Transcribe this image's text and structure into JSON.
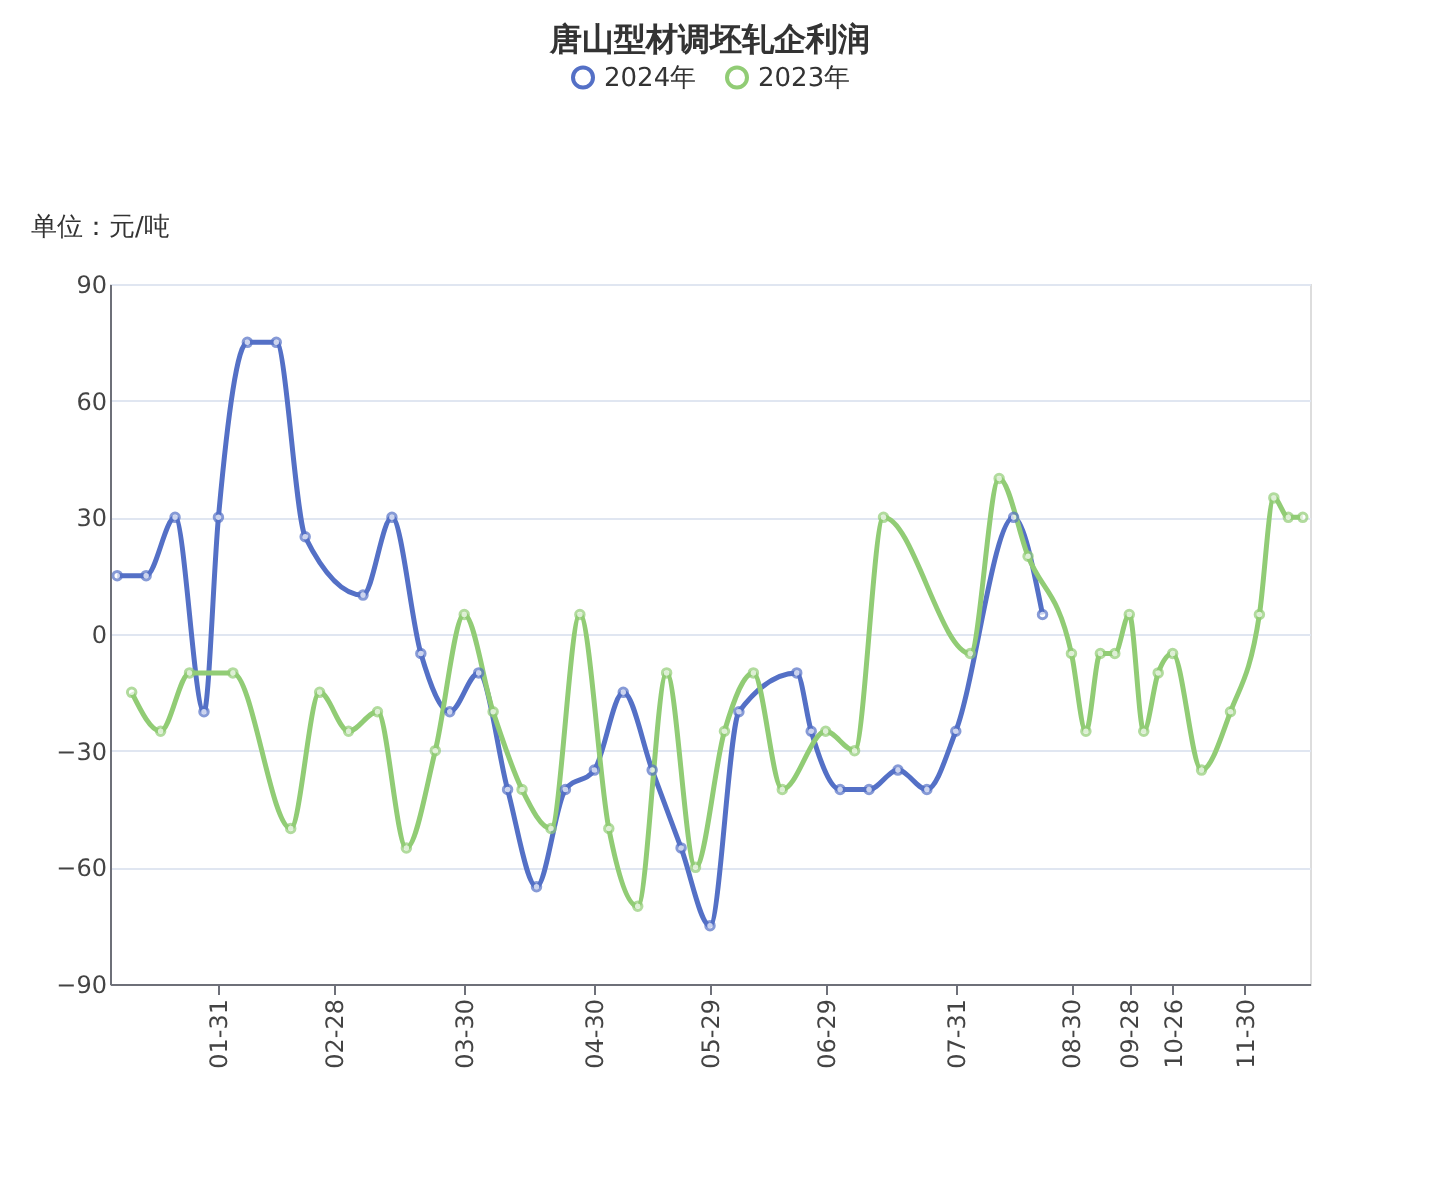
{
  "chart_data": {
    "type": "line",
    "title": "唐山型材调坯轧企利润",
    "ylabel": "单位：元/吨",
    "categories": [
      null,
      null,
      null,
      null,
      null,
      null,
      null,
      "01-31",
      null,
      null,
      null,
      null,
      null,
      null,
      null,
      "02-28",
      null,
      null,
      null,
      null,
      null,
      null,
      null,
      null,
      "03-30",
      null,
      null,
      null,
      null,
      null,
      null,
      null,
      null,
      "04-30",
      null,
      null,
      null,
      null,
      null,
      null,
      null,
      "05-29",
      null,
      null,
      null,
      null,
      null,
      null,
      null,
      "06-29",
      null,
      null,
      null,
      null,
      null,
      null,
      null,
      null,
      "07-31",
      null,
      null,
      null,
      null,
      null,
      null,
      null,
      "08-30",
      null,
      null,
      null,
      "09-28",
      null,
      null,
      "10-26",
      null,
      null,
      null,
      null,
      "11-30",
      null,
      null,
      null,
      null
    ],
    "series": [
      {
        "name": "2024年",
        "color": "#5470c6",
        "values": [
          15,
          null,
          15,
          null,
          30,
          null,
          -20,
          30,
          null,
          75,
          null,
          75,
          null,
          25,
          null,
          null,
          null,
          10,
          null,
          30,
          null,
          -5,
          null,
          -20,
          null,
          -10,
          null,
          -40,
          null,
          -65,
          null,
          -40,
          null,
          -35,
          null,
          -15,
          null,
          -35,
          null,
          -55,
          null,
          -75,
          null,
          -20,
          null,
          null,
          null,
          -10,
          -25,
          null,
          -40,
          null,
          -40,
          null,
          -35,
          null,
          -40,
          null,
          -25,
          null,
          null,
          null,
          30,
          null,
          5,
          null,
          null,
          null,
          null,
          null,
          null,
          null,
          null,
          null,
          null,
          null,
          null,
          null,
          null,
          null,
          null,
          null,
          null
        ]
      },
      {
        "name": "2023年",
        "color": "#91cc75",
        "values": [
          null,
          -15,
          null,
          -25,
          null,
          -10,
          null,
          null,
          -10,
          null,
          null,
          null,
          -50,
          null,
          -15,
          null,
          -25,
          null,
          -20,
          null,
          -55,
          null,
          -30,
          null,
          5,
          null,
          -20,
          null,
          -40,
          null,
          -50,
          null,
          5,
          null,
          -50,
          null,
          -70,
          null,
          -10,
          null,
          -60,
          null,
          -25,
          null,
          -10,
          null,
          -40,
          null,
          null,
          -25,
          null,
          -30,
          null,
          30,
          null,
          null,
          null,
          null,
          null,
          -5,
          null,
          40,
          null,
          20,
          null,
          null,
          -5,
          -25,
          -5,
          -5,
          5,
          -25,
          -10,
          -5,
          null,
          -35,
          null,
          -20,
          null,
          5,
          35,
          30,
          30
        ]
      }
    ],
    "ylim": [
      -90,
      90
    ],
    "yticks": [
      -90,
      -60,
      -30,
      0,
      30,
      60,
      90
    ],
    "grid": "y",
    "legend": "top",
    "marker": "circle",
    "line_style": "solid"
  }
}
